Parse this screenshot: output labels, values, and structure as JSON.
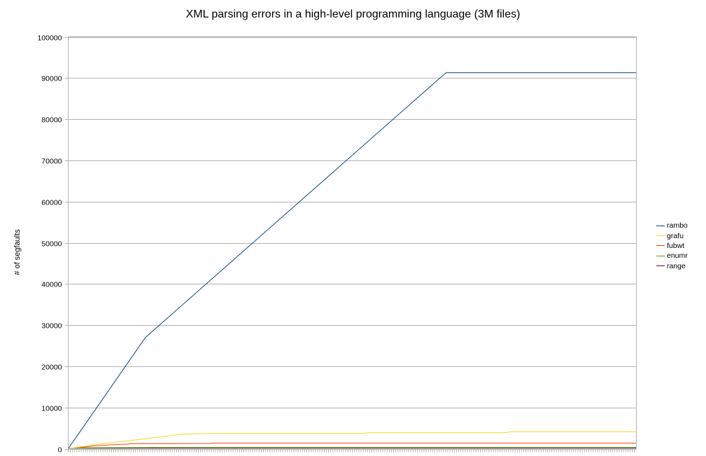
{
  "chart_data": {
    "type": "line",
    "title": "XML parsing errors in a high-level programming language (3M files)",
    "xlabel": "",
    "ylabel": "# of segfaults",
    "ylim": [
      0,
      100000
    ],
    "yticks": [
      0,
      10000,
      20000,
      30000,
      40000,
      50000,
      60000,
      70000,
      80000,
      90000,
      100000
    ],
    "x_range": [
      0,
      100
    ],
    "x_tick_labels_visible": false,
    "grid": true,
    "legend_position": "right",
    "series": [
      {
        "name": "rambo",
        "color": "#004586",
        "points": [
          [
            0,
            0
          ],
          [
            13.6,
            27000
          ],
          [
            66.5,
            91300
          ],
          [
            100,
            91300
          ]
        ]
      },
      {
        "name": "grafu",
        "color": "#ffd320",
        "points": [
          [
            0,
            0
          ],
          [
            6,
            1200
          ],
          [
            13,
            2300
          ],
          [
            20,
            3500
          ],
          [
            25,
            3700
          ],
          [
            52,
            3700
          ],
          [
            53,
            3900
          ],
          [
            77,
            3900
          ],
          [
            78,
            4100
          ],
          [
            100,
            4100
          ]
        ]
      },
      {
        "name": "fubwt",
        "color": "#ff420e",
        "points": [
          [
            0,
            0
          ],
          [
            4,
            600
          ],
          [
            8,
            1000
          ],
          [
            10.5,
            1100
          ],
          [
            11,
            1200
          ],
          [
            25,
            1250
          ],
          [
            25.5,
            1350
          ],
          [
            100,
            1350
          ]
        ]
      },
      {
        "name": "enumr",
        "color": "#579d1c",
        "points": [
          [
            0,
            0
          ],
          [
            3,
            200
          ],
          [
            10,
            250
          ],
          [
            15,
            300
          ],
          [
            100,
            300
          ]
        ]
      },
      {
        "name": "range",
        "color": "#7e0021",
        "points": [
          [
            0,
            0
          ],
          [
            2,
            100
          ],
          [
            14.5,
            100
          ],
          [
            15,
            180
          ],
          [
            100,
            180
          ]
        ]
      }
    ]
  }
}
